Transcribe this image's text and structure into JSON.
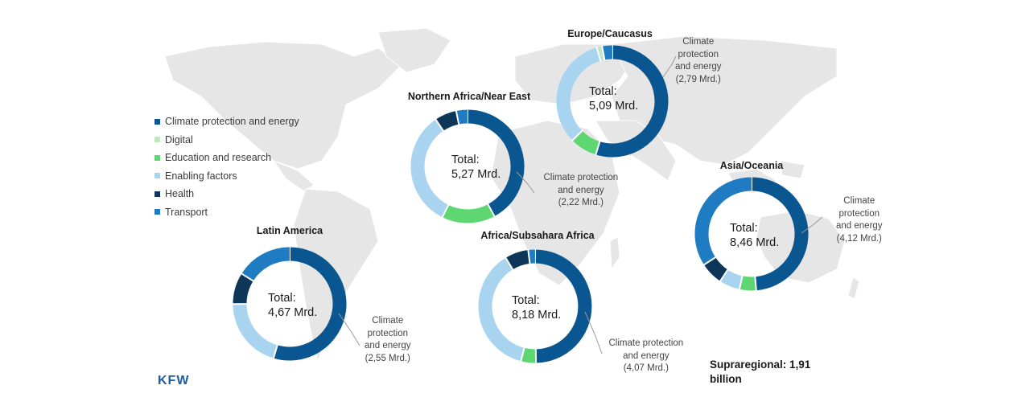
{
  "colors": {
    "Climate protection and energy": "#0a5690",
    "Digital": "#bfe6c4",
    "Education and research": "#5ed672",
    "Enabling factors": "#a9d4ef",
    "Health": "#0e3658",
    "Transport": "#1f7cc2"
  },
  "legend": [
    {
      "label": "Climate protection and energy",
      "color": "#0a5690"
    },
    {
      "label": "Digital",
      "color": "#bfe6c4"
    },
    {
      "label": "Education and research",
      "color": "#5ed672"
    },
    {
      "label": "Enabling factors",
      "color": "#a9d4ef"
    },
    {
      "label": "Health",
      "color": "#0e3658"
    },
    {
      "label": "Transport",
      "color": "#1f7cc2"
    }
  ],
  "chart_data": [
    {
      "type": "pie",
      "title": "Latin America",
      "total_line1": "Total:",
      "total_line2": "4,67 Mrd.",
      "callout": [
        "Climate",
        "protection",
        "and energy",
        "(2,55 Mrd.)"
      ],
      "series": [
        {
          "name": "Climate protection and energy",
          "value": 2.55
        },
        {
          "name": "Enabling factors",
          "value": 0.95
        },
        {
          "name": "Health",
          "value": 0.42
        },
        {
          "name": "Transport",
          "value": 0.75
        }
      ]
    },
    {
      "type": "pie",
      "title": "Northern Africa/Near East",
      "total_line1": "Total:",
      "total_line2": "5,27 Mrd.",
      "callout": [
        "Climate protection",
        "and energy",
        "(2,22 Mrd.)"
      ],
      "series": [
        {
          "name": "Climate protection and energy",
          "value": 2.22
        },
        {
          "name": "Education and research",
          "value": 0.8
        },
        {
          "name": "Enabling factors",
          "value": 1.75
        },
        {
          "name": "Health",
          "value": 0.33
        },
        {
          "name": "Transport",
          "value": 0.17
        }
      ]
    },
    {
      "type": "pie",
      "title": "Europe/Caucasus",
      "total_line1": "Total:",
      "total_line2": "5,09 Mrd.",
      "callout": [
        "Climate",
        "protection",
        "and energy",
        "(2,79 Mrd.)"
      ],
      "series": [
        {
          "name": "Climate protection and energy",
          "value": 2.79
        },
        {
          "name": "Education and research",
          "value": 0.4
        },
        {
          "name": "Enabling factors",
          "value": 1.67
        },
        {
          "name": "Digital",
          "value": 0.08
        },
        {
          "name": "Transport",
          "value": 0.15
        }
      ]
    },
    {
      "type": "pie",
      "title": "Africa/Subsahara Africa",
      "total_line1": "Total:",
      "total_line2": "8,18 Mrd.",
      "callout": [
        "Climate protection",
        "and energy",
        "(4,07 Mrd.)"
      ],
      "series": [
        {
          "name": "Climate protection and energy",
          "value": 4.07
        },
        {
          "name": "Education and research",
          "value": 0.35
        },
        {
          "name": "Enabling factors",
          "value": 3.05
        },
        {
          "name": "Health",
          "value": 0.55
        },
        {
          "name": "Transport",
          "value": 0.16
        }
      ]
    },
    {
      "type": "pie",
      "title": "Asia/Oceania",
      "total_line1": "Total:",
      "total_line2": "8,46 Mrd.",
      "callout": [
        "Climate",
        "protection",
        "and energy",
        "(4,12 Mrd.)"
      ],
      "series": [
        {
          "name": "Climate protection and energy",
          "value": 4.12
        },
        {
          "name": "Education and research",
          "value": 0.4
        },
        {
          "name": "Enabling factors",
          "value": 0.5
        },
        {
          "name": "Health",
          "value": 0.55
        },
        {
          "name": "Transport",
          "value": 2.89
        }
      ]
    }
  ],
  "supraregional": [
    "Supraregional: 1,91",
    "billion"
  ],
  "logo": "KFW"
}
